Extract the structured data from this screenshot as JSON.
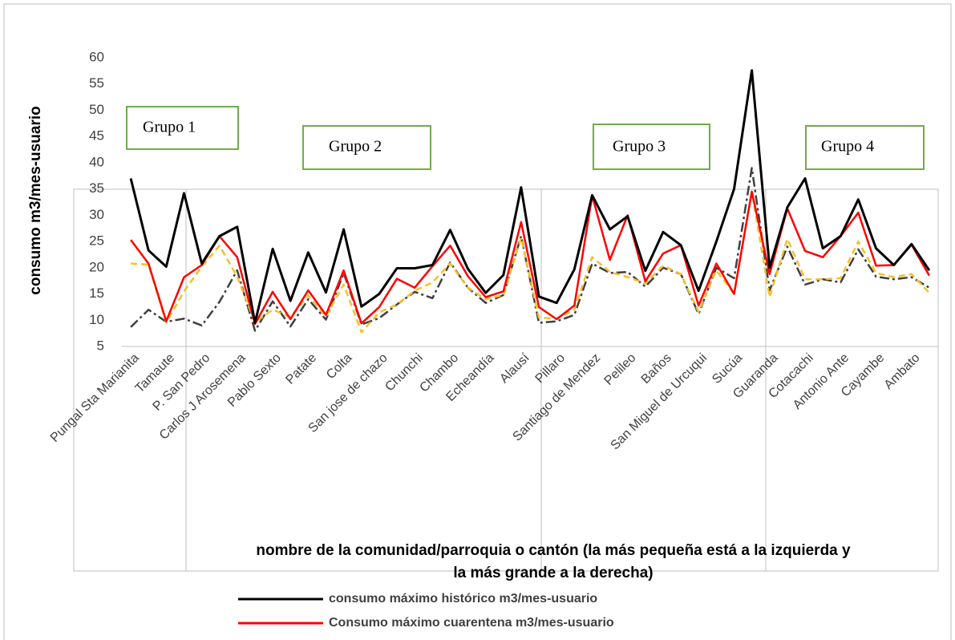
{
  "chart_data": {
    "type": "line",
    "y_label": "consumo m3/mes-usuario",
    "x_label": [
      "nombre de la comunidad/parroquia o cantón (la más pequeña está a la izquierda y",
      "la más grande a la derecha)"
    ],
    "annotations": [
      "Grupo 1",
      "Grupo 2",
      "Grupo 3",
      "Grupo 4"
    ],
    "categories": [
      "Pungal Sta Marianita",
      null,
      "Tamaute",
      null,
      "P. San Pedro",
      null,
      "Carlos J Arosemena",
      null,
      "Pablo Sexto",
      null,
      "Patate",
      null,
      "Colta",
      null,
      "San jose de chazo",
      null,
      "Chunchi",
      null,
      "Chambo",
      null,
      "Echeandía",
      null,
      "Alausí",
      null,
      "Pillaro",
      null,
      "Santiago de Mendez",
      null,
      "Pelileo",
      null,
      "Baños",
      null,
      "San Miguel de Urcuqui",
      null,
      "Sucúa",
      null,
      "Guaranda",
      null,
      "Cotacachi",
      null,
      "Antonio Ante",
      null,
      "Cayambe",
      null,
      "Ambato",
      null
    ],
    "series": [
      {
        "name": "consumo máximo histórico m3/mes-usuario",
        "color": "#000000",
        "values": [
          37,
          23.3,
          20.2,
          34.2,
          20.8,
          26,
          27.8,
          9.5,
          23.6,
          13.7,
          22.9,
          15.3,
          27.3,
          12.6,
          15,
          19.9,
          19.9,
          20.5,
          27.2,
          19.8,
          15.2,
          18.6,
          35.3,
          14.5,
          13.3,
          19.7,
          33.8,
          27.3,
          29.8,
          19.4,
          26.8,
          24.3,
          15.6,
          25,
          35,
          57.6,
          20,
          31.5,
          37,
          23.7,
          26,
          33,
          23.7,
          20.5,
          24.5,
          19.5
        ]
      },
      {
        "name": "Consumo máximo cuarentena  m3/mes-usuario",
        "color": "#ff0000",
        "values": [
          25.3,
          20.8,
          9.8,
          18.2,
          20.5,
          26,
          22,
          9.3,
          15.4,
          10.2,
          15.7,
          11,
          19.5,
          9.4,
          12.5,
          17.9,
          16.2,
          20.3,
          24.2,
          18.4,
          14.4,
          15.5,
          28.7,
          12.5,
          10.2,
          12.8,
          33.7,
          21.5,
          30,
          17.4,
          22.7,
          24.3,
          12.8,
          20.8,
          15,
          34.5,
          18.8,
          31.3,
          23.2,
          22,
          26,
          30.5,
          20.4,
          20.5,
          24.4,
          18.5
        ]
      },
      {
        "color": "#f5c02a",
        "dash": "8,5",
        "values": [
          20.8,
          20.6,
          9.5,
          15.5,
          20.2,
          24.2,
          18.3,
          9.6,
          12,
          10.6,
          14.7,
          10.7,
          16.8,
          7.7,
          11.5,
          13,
          15.6,
          17.2,
          20.8,
          16.2,
          14,
          14.8,
          25.7,
          10.5,
          10.3,
          12,
          22,
          19.2,
          18.2,
          17,
          20.4,
          18.8,
          11.6,
          19.5,
          15,
          34.5,
          14.4,
          25.5,
          17.8,
          17.8,
          18,
          25,
          19,
          18.2,
          18.8,
          15.2
        ]
      },
      {
        "color": "#404040",
        "dash": "12,4,3,4",
        "values": [
          8.7,
          12,
          9.7,
          10.3,
          9,
          13.5,
          19.5,
          8,
          13.6,
          8.8,
          14,
          10.1,
          19,
          9.2,
          10.4,
          13,
          15.4,
          14.2,
          21,
          16.2,
          13.3,
          14.8,
          26,
          9.5,
          9.8,
          11,
          20.8,
          19,
          19.2,
          16.4,
          20,
          18.8,
          11.2,
          20,
          18,
          39,
          15.7,
          24,
          16.8,
          17.8,
          17.2,
          23.5,
          18.3,
          17.8,
          18.2,
          16.2
        ]
      }
    ],
    "ylim": [
      5,
      60
    ],
    "yticks": [
      5,
      10,
      15,
      20,
      25,
      30,
      35,
      40,
      45,
      50,
      55,
      60
    ],
    "grid": false
  }
}
